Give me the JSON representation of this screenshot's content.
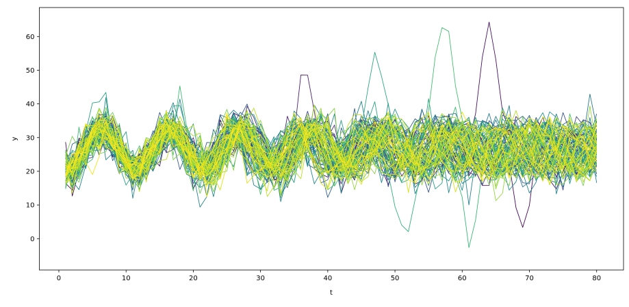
{
  "figure": {
    "background": "#ffffff"
  },
  "chart_data": {
    "type": "line",
    "title": "",
    "xlabel": "t",
    "ylabel": "y",
    "xlim": [
      -2.9,
      84.0
    ],
    "ylim": [
      -9.3,
      68.6
    ],
    "xticks": [
      0,
      10,
      20,
      30,
      40,
      50,
      60,
      70,
      80
    ],
    "yticks": [
      0,
      10,
      20,
      30,
      40,
      50,
      60
    ],
    "grid": false,
    "legend": null,
    "n_series": 100,
    "x_start": 1,
    "x_end": 80,
    "x_step": 1,
    "line_width": 0.9,
    "y_range_observed": [
      -5.5,
      65
    ],
    "series_model": {
      "mean_level": 26.5,
      "amplitude_range": [
        4.5,
        7.5
      ],
      "period_range": [
        9.4,
        11.0
      ],
      "first_crest_t": 6.4,
      "first_crest_jitter": 1.2,
      "noise_sigma_range": [
        1.6,
        3.4
      ],
      "heavy_noise_prob": 0.08,
      "heavy_noise_factor": 1.5,
      "seed": 42
    },
    "highlights": [
      {
        "series": 62,
        "t": 57,
        "dy": 32,
        "width": 2.2
      },
      {
        "series": 4,
        "t": 64,
        "dy": 27,
        "width": 2.0
      },
      {
        "series": 55,
        "t": 47,
        "dy": 24,
        "width": 2.0
      },
      {
        "series": 8,
        "t": 37,
        "dy": 20,
        "width": 1.6
      },
      {
        "series": 58,
        "t": 52,
        "dy": -28,
        "width": 1.8
      },
      {
        "series": 60,
        "t": 61,
        "dy": -24,
        "width": 1.6
      },
      {
        "series": 2,
        "t": 69,
        "dy": -26,
        "width": 1.8
      }
    ],
    "colormap": {
      "name": "viridis",
      "stops": [
        [
          0.0,
          "#440154"
        ],
        [
          0.1,
          "#482878"
        ],
        [
          0.2,
          "#3e4a89"
        ],
        [
          0.3,
          "#31688e"
        ],
        [
          0.4,
          "#26828e"
        ],
        [
          0.5,
          "#21918c"
        ],
        [
          0.6,
          "#35b779"
        ],
        [
          0.7,
          "#6dcd59"
        ],
        [
          0.8,
          "#b5de2b"
        ],
        [
          0.9,
          "#dfe318"
        ],
        [
          1.0,
          "#fde725"
        ]
      ]
    },
    "axes": {
      "spine_color": "#000000",
      "tick_color": "#000000",
      "label_color": "#000000",
      "tick_font_size": 10,
      "label_font_size": 10
    }
  }
}
